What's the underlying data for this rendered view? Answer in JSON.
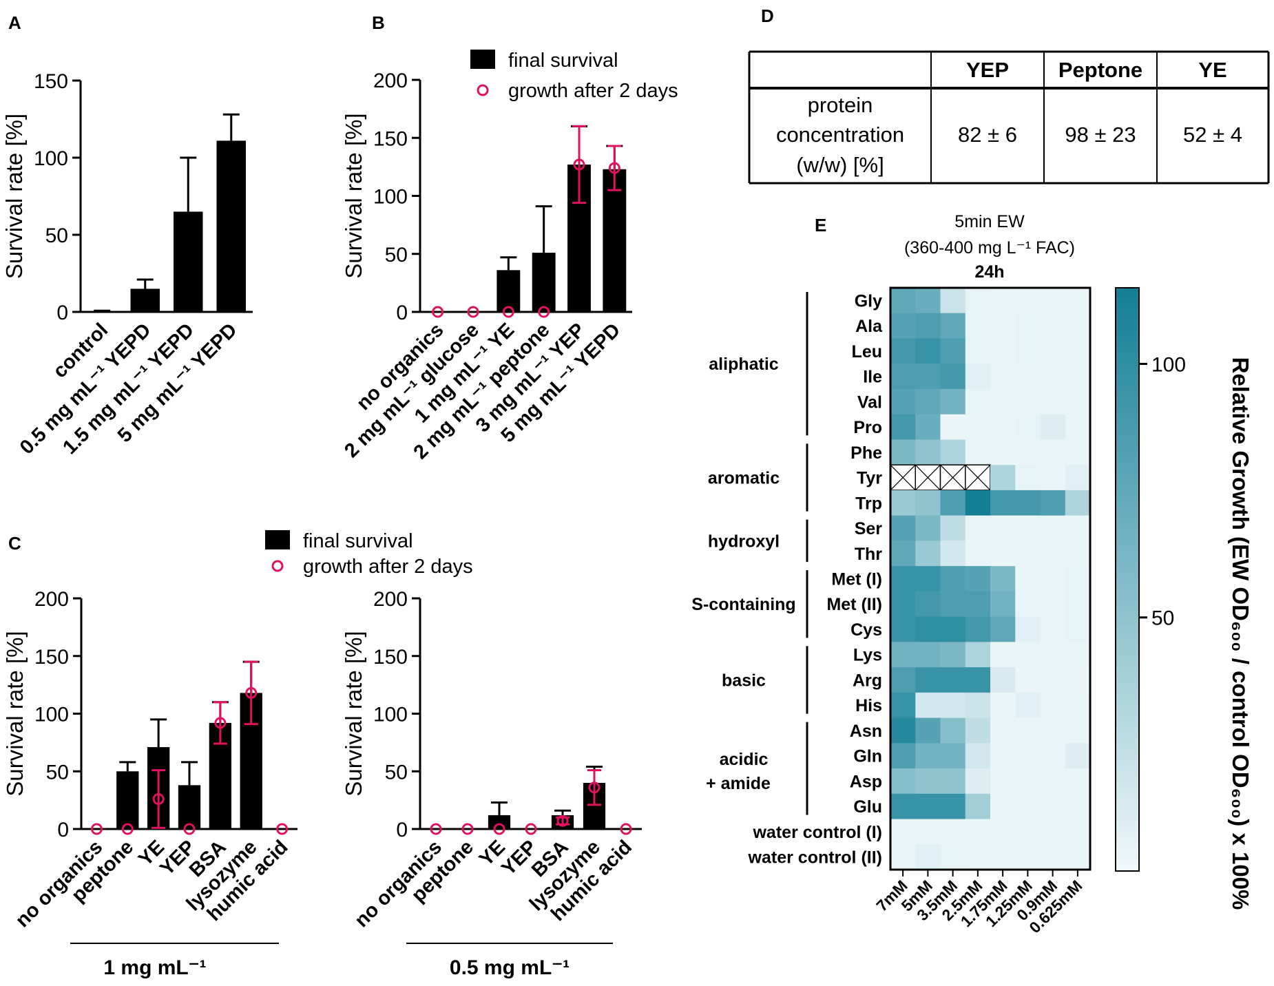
{
  "panel_labels": {
    "A": "A",
    "B": "B",
    "C": "C",
    "D": "D",
    "E": "E"
  },
  "legend": {
    "final": "final survival",
    "growth": "growth after 2 days"
  },
  "colors": {
    "bar": "#000000",
    "marker": "#e0115f",
    "heat_high": "#137e94",
    "heat_low": "#f0f8fb"
  },
  "chart_data": [
    {
      "id": "A",
      "type": "bar",
      "ylabel": "Survival rate [%]",
      "ylim": [
        0,
        150
      ],
      "yticks": [
        0,
        50,
        100,
        150
      ],
      "categories": [
        "control",
        "0.5 mg mL⁻¹ YEPD",
        "1.5 mg mL⁻¹ YEPD",
        "5 mg mL⁻¹ YEPD"
      ],
      "values": [
        0.3,
        15,
        65,
        111
      ],
      "errors": [
        0.5,
        6,
        35,
        17
      ]
    },
    {
      "id": "B",
      "type": "bar",
      "ylabel": "Survival rate [%]",
      "ylim": [
        0,
        200
      ],
      "yticks": [
        0,
        50,
        100,
        150,
        200
      ],
      "categories": [
        "no organics",
        "2 mg mL⁻¹ glucose",
        "1 mg mL⁻¹ YE",
        "2 mg mL⁻¹ peptone",
        "3 mg mL⁻¹ YEP",
        "5 mg mL⁻¹ YEPD"
      ],
      "series": [
        {
          "name": "final survival",
          "values": [
            0.5,
            0.5,
            36,
            51,
            127,
            123
          ],
          "errors": [
            0,
            0,
            11,
            40,
            33,
            20
          ]
        },
        {
          "name": "growth after 2 days",
          "values": [
            0,
            0,
            0,
            0,
            127,
            124
          ],
          "errors": [
            0,
            0,
            0,
            0,
            33,
            19
          ]
        }
      ]
    },
    {
      "id": "C1",
      "type": "bar",
      "ylabel": "Survival rate [%]",
      "ylim": [
        0,
        200
      ],
      "yticks": [
        0,
        50,
        100,
        150,
        200
      ],
      "group_label": "1 mg mL⁻¹",
      "categories": [
        "no organics",
        "peptone",
        "YE",
        "YEP",
        "BSA",
        "lysozyme",
        "humic acid"
      ],
      "series": [
        {
          "name": "final survival",
          "values": [
            0,
            50,
            71,
            38,
            92,
            118,
            0
          ],
          "errors": [
            0,
            8,
            24,
            20,
            18,
            27,
            0
          ]
        },
        {
          "name": "growth after 2 days",
          "values": [
            0,
            0,
            26,
            0,
            92,
            118,
            0
          ],
          "errors": [
            0,
            0,
            25,
            0,
            18,
            27,
            0
          ]
        }
      ]
    },
    {
      "id": "C2",
      "type": "bar",
      "ylabel": "Survival rate [%]",
      "ylim": [
        0,
        200
      ],
      "yticks": [
        0,
        50,
        100,
        150,
        200
      ],
      "group_label": "0.5 mg mL⁻¹",
      "categories": [
        "no organics",
        "peptone",
        "YE",
        "YEP",
        "BSA",
        "lysozyme",
        "humic acid"
      ],
      "series": [
        {
          "name": "final survival",
          "values": [
            0,
            0,
            12,
            0,
            12,
            40,
            0
          ],
          "errors": [
            0,
            0,
            11,
            0,
            4,
            14,
            0
          ]
        },
        {
          "name": "growth after 2 days",
          "values": [
            0,
            0,
            0,
            0,
            7,
            36,
            0
          ],
          "errors": [
            0,
            0,
            0,
            0,
            3,
            15,
            0
          ]
        }
      ]
    },
    {
      "id": "E",
      "type": "heatmap",
      "title_line1": "5min EW",
      "title_line2": "(360-400 mg L⁻¹ FAC)",
      "title_line3": "24h",
      "colorbar_label": "Relative Growth (EW OD₆₀₀ / control OD₆₀₀) x 100%",
      "colorbar_ticks": [
        50,
        100
      ],
      "vmin": 0,
      "vmax": 115,
      "columns": [
        "7mM",
        "5mM",
        "3.5mM",
        "2.5mM",
        "1.75mM",
        "1.25mM",
        "0.9mM",
        "0.625mM"
      ],
      "rows": [
        "Gly",
        "Ala",
        "Leu",
        "Ile",
        "Val",
        "Pro",
        "Phe",
        "Tyr",
        "Trp",
        "Ser",
        "Thr",
        "Met (I)",
        "Met (II)",
        "Cys",
        "Lys",
        "Arg",
        "His",
        "Asn",
        "Gln",
        "Asp",
        "Glu",
        "water control (I)",
        "water control (II)"
      ],
      "groups": [
        {
          "label": "aliphatic",
          "label2": "",
          "start": 0,
          "end": 5
        },
        {
          "label": "aromatic",
          "label2": "",
          "start": 6,
          "end": 8
        },
        {
          "label": "hydroxyl",
          "label2": "",
          "start": 9,
          "end": 10
        },
        {
          "label": "S-containing",
          "label2": "",
          "start": 11,
          "end": 13
        },
        {
          "label": "basic",
          "label2": "",
          "start": 14,
          "end": 16
        },
        {
          "label": "acidic",
          "label2": "+ amide",
          "start": 17,
          "end": 20
        }
      ],
      "values": [
        [
          75,
          70,
          20,
          5,
          3,
          3,
          3,
          3
        ],
        [
          80,
          85,
          75,
          5,
          3,
          5,
          3,
          3
        ],
        [
          90,
          95,
          85,
          5,
          3,
          5,
          3,
          3
        ],
        [
          85,
          85,
          90,
          8,
          3,
          3,
          3,
          3
        ],
        [
          80,
          75,
          65,
          5,
          3,
          3,
          3,
          3
        ],
        [
          90,
          70,
          2,
          3,
          3,
          5,
          10,
          3
        ],
        [
          60,
          50,
          35,
          3,
          3,
          3,
          3,
          3
        ],
        [
          null,
          null,
          null,
          null,
          35,
          5,
          3,
          8
        ],
        [
          45,
          50,
          85,
          115,
          90,
          90,
          85,
          35
        ],
        [
          80,
          60,
          25,
          3,
          3,
          3,
          3,
          3
        ],
        [
          75,
          45,
          15,
          3,
          3,
          3,
          3,
          3
        ],
        [
          95,
          95,
          85,
          80,
          60,
          3,
          3,
          5
        ],
        [
          95,
          90,
          85,
          85,
          65,
          3,
          2,
          5
        ],
        [
          95,
          100,
          100,
          90,
          75,
          8,
          3,
          5
        ],
        [
          65,
          65,
          60,
          35,
          3,
          3,
          3,
          3
        ],
        [
          85,
          95,
          95,
          95,
          12,
          2,
          3,
          2
        ],
        [
          95,
          15,
          15,
          20,
          3,
          8,
          3,
          3
        ],
        [
          105,
          80,
          55,
          25,
          3,
          3,
          3,
          3
        ],
        [
          85,
          65,
          65,
          15,
          3,
          3,
          3,
          10
        ],
        [
          55,
          50,
          50,
          10,
          3,
          3,
          3,
          3
        ],
        [
          95,
          95,
          95,
          40,
          3,
          3,
          3,
          3
        ],
        [
          3,
          3,
          3,
          3,
          3,
          3,
          3,
          3
        ],
        [
          3,
          8,
          5,
          3,
          3,
          3,
          3,
          3
        ]
      ]
    }
  ],
  "table": {
    "headers": [
      "",
      "YEP",
      "Peptone",
      "YE"
    ],
    "row_label_lines": [
      "protein",
      "concentration",
      "(w/w) [%]"
    ],
    "cells": [
      "82 ± 6",
      "98 ± 23",
      "52 ± 4"
    ]
  }
}
